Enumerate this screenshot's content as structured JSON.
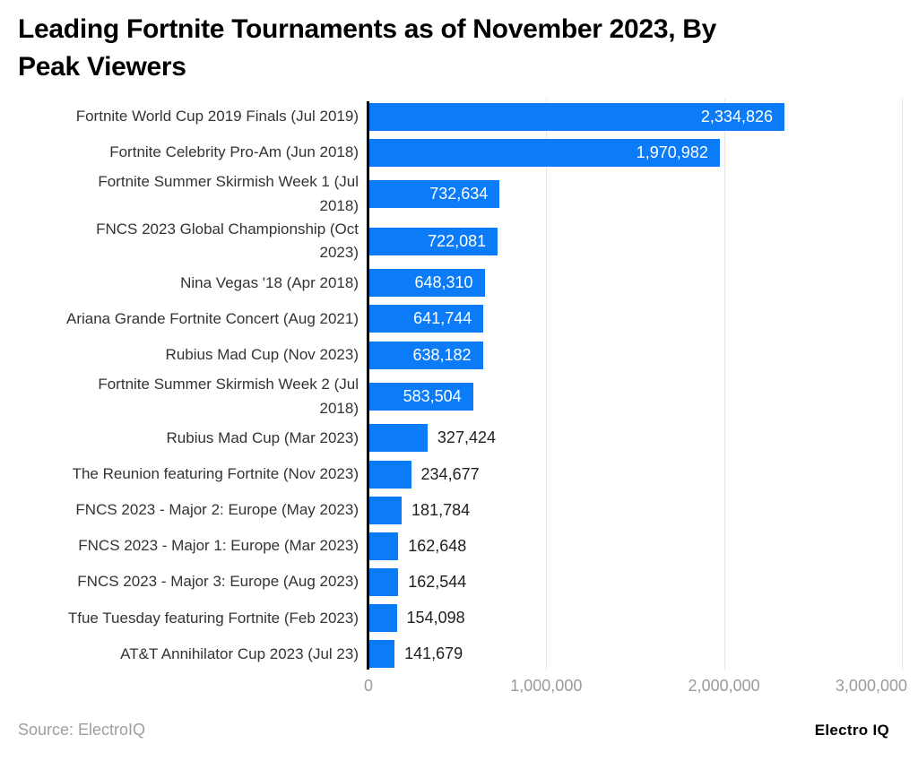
{
  "title": "Leading Fortnite Tournaments as of November 2023, By\nPeak Viewers",
  "footer": {
    "source": "Source: ElectroIQ",
    "brand": "Electro IQ"
  },
  "colors": {
    "bar": "#0b7bf8",
    "grid": "#e8e8e8",
    "axis_line": "#000000",
    "tick_label": "#9b9b9b",
    "category_label": "#333333",
    "value_inside": "#ffffff",
    "value_outside": "#1f1f1f"
  },
  "chart_data": {
    "type": "bar",
    "orientation": "horizontal",
    "title": "Leading Fortnite Tournaments as of November 2023, By Peak Viewers",
    "xlabel": "",
    "ylabel": "",
    "categories": [
      "Fortnite World Cup 2019 Finals (Jul 2019)",
      "Fortnite Celebrity Pro-Am (Jun 2018)",
      "Fortnite Summer Skirmish Week 1 (Jul\n2018)",
      "FNCS 2023 Global Championship (Oct\n2023)",
      "Nina Vegas '18 (Apr 2018)",
      "Ariana Grande Fortnite Concert (Aug 2021)",
      "Rubius Mad Cup (Nov 2023)",
      "Fortnite Summer Skirmish Week 2 (Jul\n2018)",
      "Rubius Mad Cup (Mar 2023)",
      "The Reunion featuring Fortnite (Nov 2023)",
      "FNCS 2023 - Major 2: Europe (May 2023)",
      "FNCS 2023 - Major 1: Europe (Mar 2023)",
      "FNCS 2023 - Major 3: Europe (Aug 2023)",
      "Tfue Tuesday featuring Fortnite (Feb 2023)",
      "AT&T Annihilator Cup 2023 (Jul 23)"
    ],
    "values": [
      2334826,
      1970982,
      732634,
      722081,
      648310,
      641744,
      638182,
      583504,
      327424,
      234677,
      181784,
      162648,
      162544,
      154098,
      141679
    ],
    "value_labels": [
      "2,334,826",
      "1,970,982",
      "732,634",
      "722,081",
      "648,310",
      "641,744",
      "638,182",
      "583,504",
      "327,424",
      "234,677",
      "181,784",
      "162,648",
      "162,544",
      "154,098",
      "141,679"
    ],
    "xlim": [
      0,
      3000000
    ],
    "x_ticks": [
      {
        "value": 0,
        "label": "0"
      },
      {
        "value": 1000000,
        "label": "1,000,000"
      },
      {
        "value": 2000000,
        "label": "2,000,000"
      },
      {
        "value": 3000000,
        "label": "3,000,000"
      }
    ],
    "grid": true,
    "legend": false
  }
}
